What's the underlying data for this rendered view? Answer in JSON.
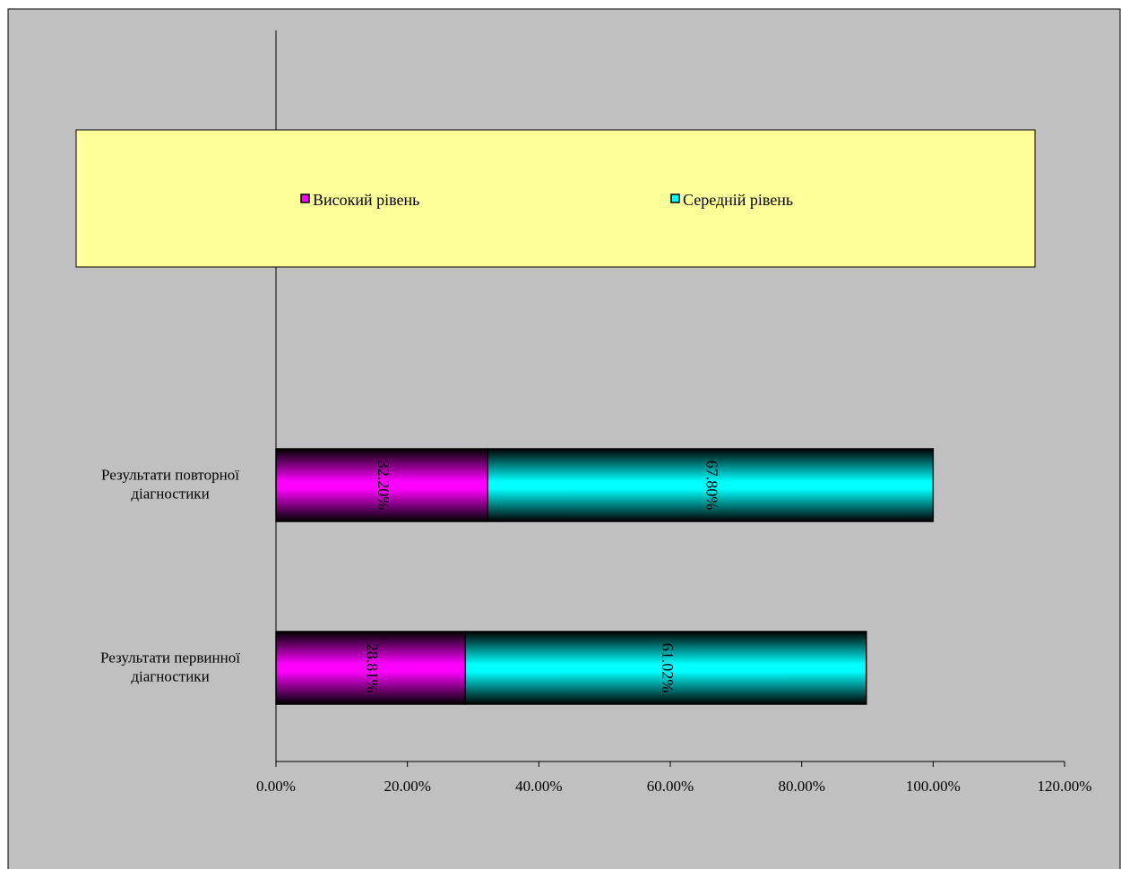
{
  "colors": {
    "chart_area": "#c0c0c0",
    "legend_fill": "#ffff99",
    "series_high": "#ff00ff",
    "series_medium": "#00ffff",
    "border": "#000000"
  },
  "chart_data": {
    "type": "bar",
    "orientation": "horizontal",
    "stacked": true,
    "title": "",
    "xlabel": "",
    "ylabel": "",
    "xlim": [
      0,
      1.2
    ],
    "x_ticks": [
      "0.00%",
      "20.00%",
      "40.00%",
      "60.00%",
      "80.00%",
      "100.00%",
      "120.00%"
    ],
    "categories": [
      [
        "Результати повторної",
        "діагностики"
      ],
      [
        "Результати первинної",
        "діагностики"
      ]
    ],
    "series": [
      {
        "name": "Високий рівень",
        "color": "#ff00ff",
        "values": [
          0.322,
          0.2881
        ],
        "labels": [
          "32.20%",
          "28.81%"
        ]
      },
      {
        "name": "Середній рівень",
        "color": "#00ffff",
        "values": [
          0.678,
          0.6102
        ],
        "labels": [
          "67.80%",
          "61.02%"
        ]
      }
    ],
    "legend": {
      "position": "top",
      "items": [
        "Високий рівень",
        "Середній рівень"
      ]
    },
    "grid": false,
    "data_label_rotation": "vertical"
  }
}
